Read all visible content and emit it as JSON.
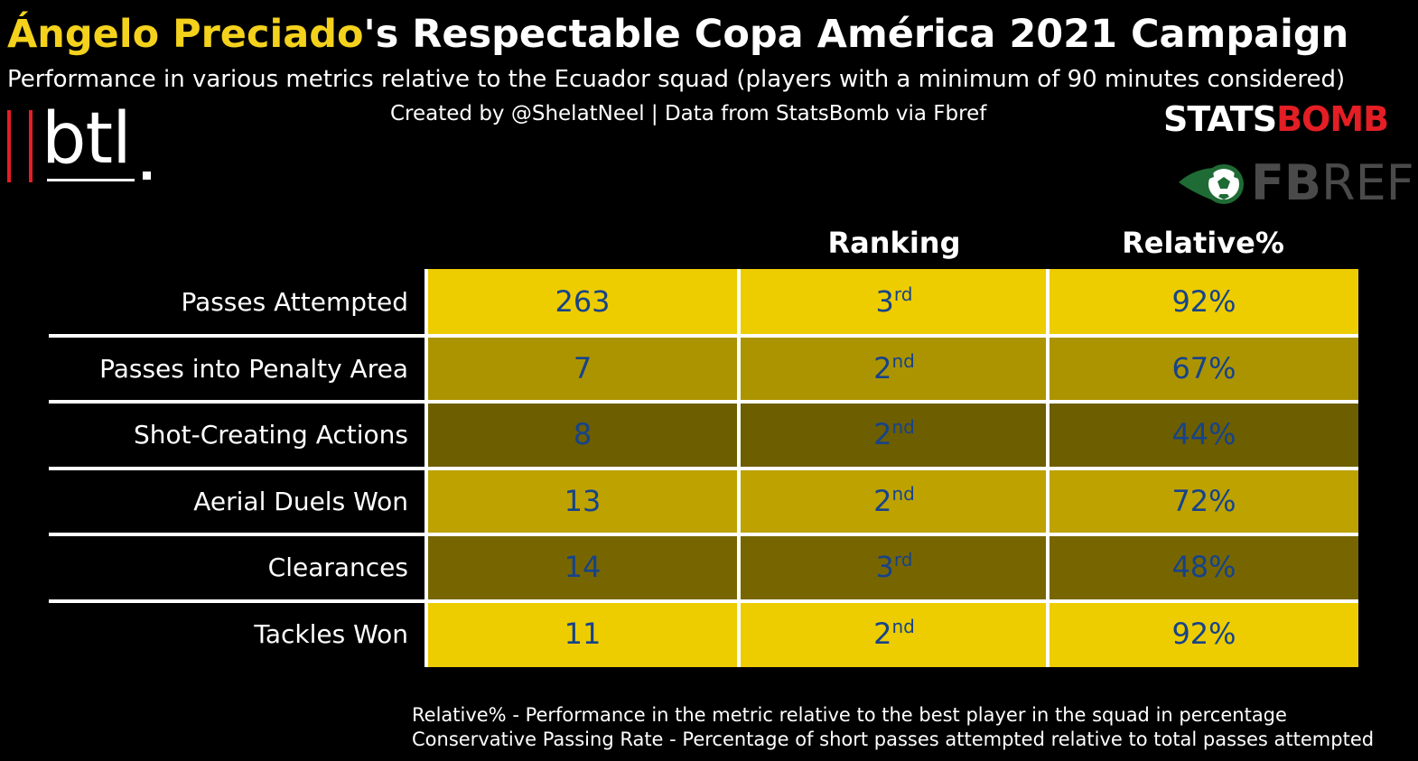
{
  "title": {
    "highlight": "Ángelo Preciado",
    "rest": "'s Respectable Copa América 2021 Campaign",
    "highlight_color": "#f4d21c"
  },
  "subtitle": "Performance in various metrics relative to the Ecuador squad (players with a minimum of 90 minutes considered)",
  "credit": "Created by @ShelatNeel | Data from StatsBomb via Fbref",
  "logos": {
    "btl": "btl",
    "statsbomb": {
      "white": "STATS",
      "red": "BOMB"
    },
    "fbref": {
      "bold": "FB",
      "light": "REF"
    }
  },
  "colors": {
    "background": "#000000",
    "text": "#ffffff",
    "cell_text": "#16438a",
    "accent_red": "#e31e24"
  },
  "chart_data": {
    "type": "table",
    "columns": [
      "",
      "Ranking",
      "Relative%"
    ],
    "rows": [
      {
        "metric": "Passes Attempted",
        "value": "263",
        "rank_num": "3",
        "rank_suffix": "rd",
        "relative": "92%",
        "relative_value": 92
      },
      {
        "metric": "Passes into Penalty Area",
        "value": "7",
        "rank_num": "2",
        "rank_suffix": "nd",
        "relative": "67%",
        "relative_value": 67
      },
      {
        "metric": "Shot-Creating Actions",
        "value": "8",
        "rank_num": "2",
        "rank_suffix": "nd",
        "relative": "44%",
        "relative_value": 44
      },
      {
        "metric": "Aerial Duels Won",
        "value": "13",
        "rank_num": "2",
        "rank_suffix": "nd",
        "relative": "72%",
        "relative_value": 72
      },
      {
        "metric": "Clearances",
        "value": "14",
        "rank_num": "3",
        "rank_suffix": "rd",
        "relative": "48%",
        "relative_value": 48
      },
      {
        "metric": "Tackles Won",
        "value": "11",
        "rank_num": "2",
        "rank_suffix": "nd",
        "relative": "92%",
        "relative_value": 92
      }
    ],
    "row_colors": [
      "#edcc00",
      "#ac9400",
      "#6d5e00",
      "#bda200",
      "#776600",
      "#edcc00"
    ]
  },
  "notes": [
    "Relative% - Performance in the metric relative to the best player in the squad in percentage",
    "Conservative Passing Rate - Percentage of short passes attempted relative to total passes attempted"
  ]
}
